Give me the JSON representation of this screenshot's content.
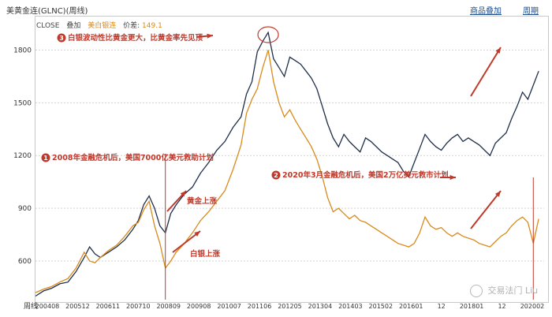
{
  "window": {
    "title": "美黄金连(GLNC)(周线)",
    "links": [
      "商品叠加",
      "周期"
    ]
  },
  "legend": {
    "close_label": "CLOSE",
    "overlay_label": "叠加",
    "series2_label": "美白银连",
    "price_label": "价差:",
    "price_value": "149.1"
  },
  "chart_data": {
    "type": "line",
    "title": "美黄金连(GLNC)(周线)",
    "xlabel": "周线",
    "ylabel": "",
    "ylim": [
      380,
      1950
    ],
    "yticks": [
      600,
      900,
      1200,
      1500,
      1800
    ],
    "xticks": [
      "200408",
      "200512",
      "200611",
      "200710",
      "200809",
      "200908",
      "201007",
      "201106",
      "201205",
      "201304",
      "201403",
      "201502",
      "201601",
      "12",
      "201801",
      "12",
      "202002"
    ],
    "series": [
      {
        "name": "美黄金连",
        "color": "#1f2f4a",
        "values": [
          [
            0,
            400
          ],
          [
            3,
            430
          ],
          [
            6,
            445
          ],
          [
            9,
            470
          ],
          [
            12,
            480
          ],
          [
            15,
            540
          ],
          [
            18,
            620
          ],
          [
            20,
            680
          ],
          [
            22,
            640
          ],
          [
            24,
            620
          ],
          [
            27,
            650
          ],
          [
            30,
            680
          ],
          [
            33,
            720
          ],
          [
            36,
            780
          ],
          [
            38,
            830
          ],
          [
            40,
            920
          ],
          [
            42,
            970
          ],
          [
            44,
            900
          ],
          [
            46,
            800
          ],
          [
            48,
            760
          ],
          [
            50,
            870
          ],
          [
            52,
            920
          ],
          [
            55,
            980
          ],
          [
            58,
            1020
          ],
          [
            61,
            1100
          ],
          [
            64,
            1160
          ],
          [
            67,
            1230
          ],
          [
            70,
            1280
          ],
          [
            73,
            1360
          ],
          [
            76,
            1420
          ],
          [
            78,
            1550
          ],
          [
            80,
            1620
          ],
          [
            82,
            1790
          ],
          [
            84,
            1850
          ],
          [
            86,
            1900
          ],
          [
            88,
            1750
          ],
          [
            90,
            1700
          ],
          [
            92,
            1650
          ],
          [
            94,
            1760
          ],
          [
            96,
            1740
          ],
          [
            98,
            1720
          ],
          [
            100,
            1680
          ],
          [
            102,
            1640
          ],
          [
            104,
            1580
          ],
          [
            106,
            1480
          ],
          [
            108,
            1380
          ],
          [
            110,
            1300
          ],
          [
            112,
            1250
          ],
          [
            114,
            1320
          ],
          [
            116,
            1280
          ],
          [
            118,
            1250
          ],
          [
            120,
            1220
          ],
          [
            122,
            1300
          ],
          [
            124,
            1280
          ],
          [
            126,
            1250
          ],
          [
            128,
            1220
          ],
          [
            130,
            1200
          ],
          [
            132,
            1180
          ],
          [
            134,
            1160
          ],
          [
            136,
            1110
          ],
          [
            138,
            1080
          ],
          [
            140,
            1160
          ],
          [
            142,
            1240
          ],
          [
            144,
            1320
          ],
          [
            146,
            1280
          ],
          [
            148,
            1250
          ],
          [
            150,
            1230
          ],
          [
            152,
            1270
          ],
          [
            154,
            1300
          ],
          [
            156,
            1320
          ],
          [
            158,
            1280
          ],
          [
            160,
            1300
          ],
          [
            162,
            1280
          ],
          [
            164,
            1260
          ],
          [
            166,
            1230
          ],
          [
            168,
            1200
          ],
          [
            170,
            1270
          ],
          [
            172,
            1300
          ],
          [
            174,
            1330
          ],
          [
            176,
            1410
          ],
          [
            178,
            1480
          ],
          [
            180,
            1560
          ],
          [
            182,
            1520
          ],
          [
            184,
            1600
          ],
          [
            186,
            1680
          ]
        ]
      },
      {
        "name": "美白银连",
        "color": "#d98a1a",
        "values": [
          [
            0,
            420
          ],
          [
            3,
            440
          ],
          [
            6,
            455
          ],
          [
            9,
            480
          ],
          [
            12,
            500
          ],
          [
            15,
            560
          ],
          [
            18,
            650
          ],
          [
            20,
            600
          ],
          [
            22,
            590
          ],
          [
            24,
            620
          ],
          [
            27,
            660
          ],
          [
            30,
            690
          ],
          [
            33,
            740
          ],
          [
            36,
            800
          ],
          [
            38,
            820
          ],
          [
            40,
            890
          ],
          [
            42,
            940
          ],
          [
            44,
            800
          ],
          [
            46,
            700
          ],
          [
            48,
            560
          ],
          [
            50,
            600
          ],
          [
            52,
            650
          ],
          [
            55,
            700
          ],
          [
            58,
            760
          ],
          [
            61,
            830
          ],
          [
            64,
            880
          ],
          [
            67,
            940
          ],
          [
            70,
            1000
          ],
          [
            73,
            1120
          ],
          [
            76,
            1260
          ],
          [
            78,
            1440
          ],
          [
            80,
            1520
          ],
          [
            82,
            1580
          ],
          [
            84,
            1700
          ],
          [
            86,
            1800
          ],
          [
            88,
            1620
          ],
          [
            90,
            1500
          ],
          [
            92,
            1420
          ],
          [
            94,
            1460
          ],
          [
            96,
            1400
          ],
          [
            98,
            1350
          ],
          [
            100,
            1300
          ],
          [
            102,
            1250
          ],
          [
            104,
            1180
          ],
          [
            106,
            1080
          ],
          [
            108,
            960
          ],
          [
            110,
            880
          ],
          [
            112,
            900
          ],
          [
            114,
            870
          ],
          [
            116,
            840
          ],
          [
            118,
            860
          ],
          [
            120,
            830
          ],
          [
            122,
            820
          ],
          [
            124,
            800
          ],
          [
            126,
            780
          ],
          [
            128,
            760
          ],
          [
            130,
            740
          ],
          [
            132,
            720
          ],
          [
            134,
            700
          ],
          [
            136,
            690
          ],
          [
            138,
            680
          ],
          [
            140,
            700
          ],
          [
            142,
            760
          ],
          [
            144,
            850
          ],
          [
            146,
            800
          ],
          [
            148,
            780
          ],
          [
            150,
            790
          ],
          [
            152,
            760
          ],
          [
            154,
            740
          ],
          [
            156,
            760
          ],
          [
            158,
            740
          ],
          [
            160,
            730
          ],
          [
            162,
            720
          ],
          [
            164,
            700
          ],
          [
            166,
            690
          ],
          [
            168,
            680
          ],
          [
            170,
            710
          ],
          [
            172,
            740
          ],
          [
            174,
            760
          ],
          [
            176,
            800
          ],
          [
            178,
            830
          ],
          [
            180,
            850
          ],
          [
            182,
            820
          ],
          [
            184,
            700
          ],
          [
            186,
            840
          ]
        ]
      }
    ],
    "annotations": [
      {
        "num": "1",
        "text": "2008年金融危机后，美国7000亿美元救助计划",
        "x": 48
      },
      {
        "num": "2",
        "text": "2020年3月金融危机后，美国2万亿美元救市计划",
        "x": 184
      },
      {
        "num": "3",
        "text": "白银波动性比黄金更大，比黄金率先见顶",
        "x": 86
      },
      {
        "num": "",
        "text": "黄金上涨",
        "x": 60
      },
      {
        "num": "",
        "text": "白银上涨",
        "x": 60
      }
    ]
  },
  "watermark": {
    "text": "交易法门",
    "side_text": "Liu"
  }
}
